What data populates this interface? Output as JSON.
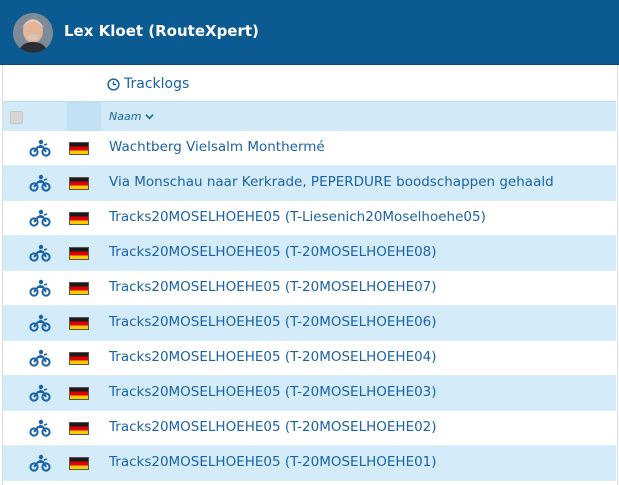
{
  "header": {
    "user_name": "Lex Kloet (RouteXpert)",
    "bg_color": "#0c5a92"
  },
  "section": {
    "title": "Tracklogs",
    "icon": "clock-icon"
  },
  "table": {
    "sort_column": "Naam",
    "sort_icon": "chevron-down-icon",
    "row_icon": "motorcycle-icon",
    "flag": "germany-flag",
    "accent_color": "#1a63a8",
    "stripe_color": "#d4ecf9",
    "rows": [
      {
        "label": "Wachtberg Vielsalm Monthermé"
      },
      {
        "label": "Via Monschau naar Kerkrade, PEPERDURE boodschappen gehaald"
      },
      {
        "label": "Tracks20MOSELHOEHE05 (T-Liesenich20Moselhoehe05)"
      },
      {
        "label": "Tracks20MOSELHOEHE05 (T-20MOSELHOEHE08)"
      },
      {
        "label": "Tracks20MOSELHOEHE05 (T-20MOSELHOEHE07)"
      },
      {
        "label": "Tracks20MOSELHOEHE05 (T-20MOSELHOEHE06)"
      },
      {
        "label": "Tracks20MOSELHOEHE05 (T-20MOSELHOEHE04)"
      },
      {
        "label": "Tracks20MOSELHOEHE05 (T-20MOSELHOEHE03)"
      },
      {
        "label": "Tracks20MOSELHOEHE05 (T-20MOSELHOEHE02)"
      },
      {
        "label": "Tracks20MOSELHOEHE05 (T-20MOSELHOEHE01)"
      }
    ]
  }
}
